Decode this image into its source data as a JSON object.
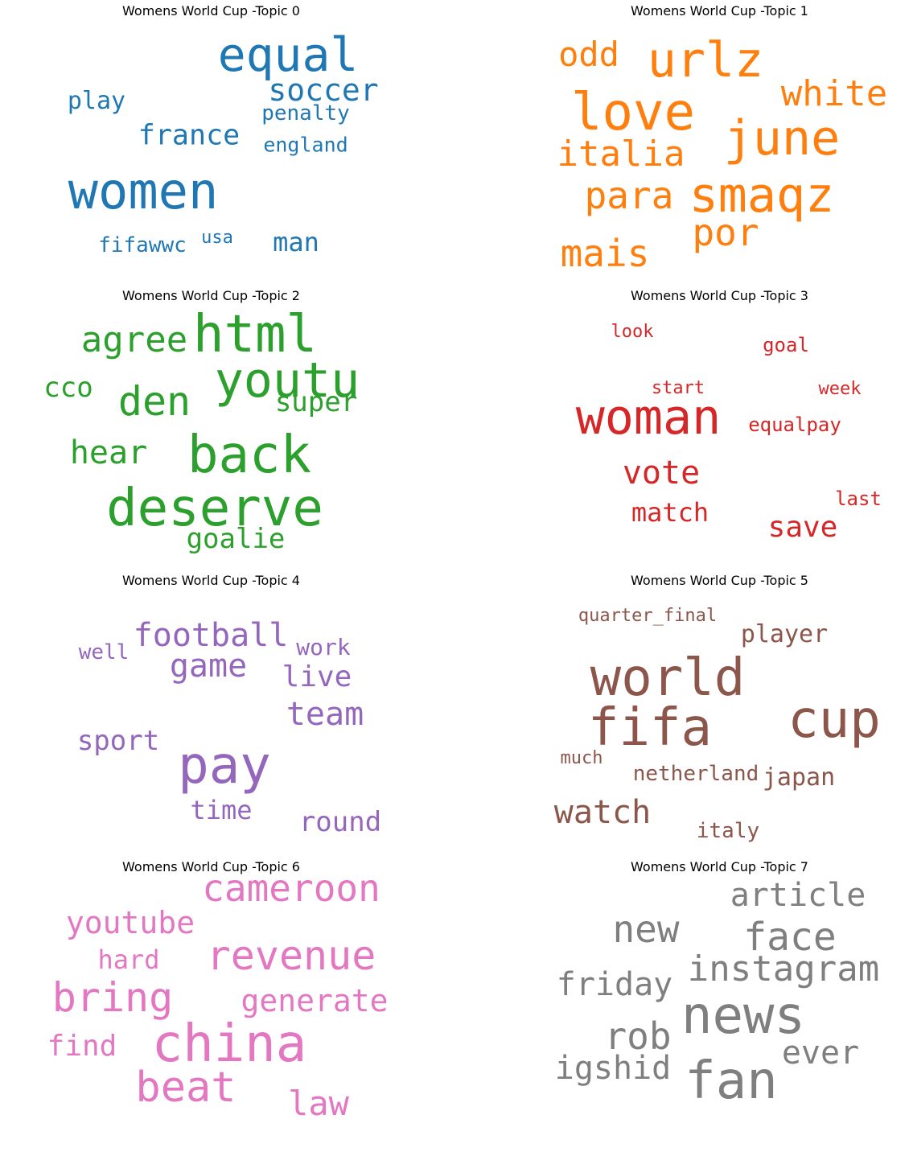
{
  "chart_data": [
    {
      "type": "wordcloud",
      "title": "Womens World Cup -Topic 0",
      "color": "#1f77b4",
      "words": [
        "equal",
        "women",
        "soccer",
        "france",
        "play",
        "penalty",
        "england",
        "man",
        "fifawwc",
        "usa"
      ]
    },
    {
      "type": "wordcloud",
      "title": "Womens World Cup -Topic 1",
      "color": "#ff7f0e",
      "words": [
        "urlz",
        "odd",
        "love",
        "white",
        "june",
        "italia",
        "smaqz",
        "para",
        "por",
        "mais"
      ]
    },
    {
      "type": "wordcloud",
      "title": "Womens World Cup -Topic 2",
      "color": "#2ca02c",
      "words": [
        "html",
        "agree",
        "youtu",
        "cco",
        "den",
        "super",
        "back",
        "hear",
        "deserve",
        "goalie"
      ]
    },
    {
      "type": "wordcloud",
      "title": "Womens World Cup -Topic 3",
      "color": "#d62728",
      "words": [
        "look",
        "goal",
        "start",
        "week",
        "woman",
        "equalpay",
        "vote",
        "last",
        "match",
        "save"
      ]
    },
    {
      "type": "wordcloud",
      "title": "Womens World Cup -Topic 4",
      "color": "#9467bd",
      "words": [
        "football",
        "well",
        "work",
        "game",
        "live",
        "team",
        "sport",
        "pay",
        "time",
        "round"
      ]
    },
    {
      "type": "wordcloud",
      "title": "Womens World Cup -Topic 5",
      "color": "#8c564b",
      "words": [
        "quarter_final",
        "player",
        "world",
        "cup",
        "fifa",
        "much",
        "netherland",
        "japan",
        "watch",
        "italy"
      ]
    },
    {
      "type": "wordcloud",
      "title": "Womens World Cup -Topic 6",
      "color": "#e377c2",
      "words": [
        "cameroon",
        "youtube",
        "revenue",
        "hard",
        "bring",
        "generate",
        "find",
        "china",
        "beat",
        "law"
      ]
    },
    {
      "type": "wordcloud",
      "title": "Womens World Cup -Topic 7",
      "color": "#7f7f7f",
      "words": [
        "article",
        "new",
        "face",
        "instagram",
        "friday",
        "news",
        "rob",
        "ever",
        "igshid",
        "fan"
      ]
    }
  ]
}
